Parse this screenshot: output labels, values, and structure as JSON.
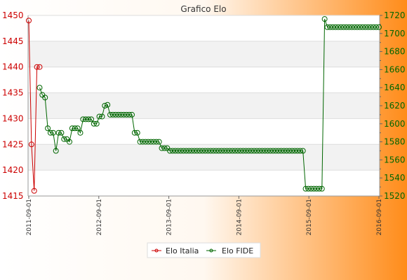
{
  "chart_data": {
    "type": "line",
    "title": "Grafico Elo",
    "legend_placement": "bottom",
    "grid": true,
    "x_tick_labels": [
      "2011-09-01",
      "2012-09-01",
      "2013-09-01",
      "2014-09-01",
      "2015-09-01",
      "2016-09-01"
    ],
    "y_left": {
      "min": 1415,
      "max": 1450,
      "ticks": [
        1415,
        1420,
        1425,
        1430,
        1435,
        1440,
        1445,
        1450
      ],
      "color": "#cc0000"
    },
    "y_right": {
      "min": 1520,
      "max": 1720,
      "ticks": [
        1520,
        1540,
        1560,
        1580,
        1600,
        1620,
        1640,
        1660,
        1680,
        1700,
        1720
      ],
      "color": "#006600"
    },
    "n_periods": 130,
    "series": [
      {
        "name": "Elo Italia",
        "axis": "left",
        "color": "#cc0000",
        "points": [
          [
            0,
            1449
          ],
          [
            1,
            1425
          ],
          [
            2,
            1416
          ],
          [
            3,
            1440
          ],
          [
            4,
            1440
          ]
        ]
      },
      {
        "name": "Elo FIDE",
        "axis": "right",
        "color": "#006600",
        "points": [
          [
            4,
            1640
          ],
          [
            5,
            1632
          ],
          [
            6,
            1629
          ],
          [
            7,
            1595
          ],
          [
            8,
            1590
          ],
          [
            9,
            1590
          ],
          [
            10,
            1570
          ],
          [
            11,
            1590
          ],
          [
            12,
            1590
          ],
          [
            13,
            1583
          ],
          [
            14,
            1583
          ],
          [
            15,
            1580
          ],
          [
            16,
            1595
          ],
          [
            17,
            1595
          ],
          [
            18,
            1595
          ],
          [
            19,
            1590
          ],
          [
            20,
            1605
          ],
          [
            21,
            1605
          ],
          [
            22,
            1605
          ],
          [
            23,
            1605
          ],
          [
            24,
            1600
          ],
          [
            25,
            1600
          ],
          [
            26,
            1608
          ],
          [
            27,
            1608
          ],
          [
            28,
            1620
          ],
          [
            29,
            1621
          ],
          [
            30,
            1610
          ],
          [
            31,
            1610
          ],
          [
            32,
            1610
          ],
          [
            33,
            1610
          ],
          [
            34,
            1610
          ],
          [
            35,
            1610
          ],
          [
            36,
            1610
          ],
          [
            37,
            1610
          ],
          [
            38,
            1610
          ],
          [
            39,
            1590
          ],
          [
            40,
            1590
          ],
          [
            41,
            1580
          ],
          [
            42,
            1580
          ],
          [
            43,
            1580
          ],
          [
            44,
            1580
          ],
          [
            45,
            1580
          ],
          [
            46,
            1580
          ],
          [
            47,
            1580
          ],
          [
            48,
            1580
          ],
          [
            49,
            1573
          ],
          [
            50,
            1573
          ],
          [
            51,
            1573
          ],
          [
            52,
            1570
          ],
          [
            53,
            1570
          ],
          [
            54,
            1570
          ],
          [
            55,
            1570
          ],
          [
            56,
            1570
          ],
          [
            57,
            1570
          ],
          [
            58,
            1570
          ],
          [
            59,
            1570
          ],
          [
            60,
            1570
          ],
          [
            61,
            1570
          ],
          [
            62,
            1570
          ],
          [
            63,
            1570
          ],
          [
            64,
            1570
          ],
          [
            65,
            1570
          ],
          [
            66,
            1570
          ],
          [
            67,
            1570
          ],
          [
            68,
            1570
          ],
          [
            69,
            1570
          ],
          [
            70,
            1570
          ],
          [
            71,
            1570
          ],
          [
            72,
            1570
          ],
          [
            73,
            1570
          ],
          [
            74,
            1570
          ],
          [
            75,
            1570
          ],
          [
            76,
            1570
          ],
          [
            77,
            1570
          ],
          [
            78,
            1570
          ],
          [
            79,
            1570
          ],
          [
            80,
            1570
          ],
          [
            81,
            1570
          ],
          [
            82,
            1570
          ],
          [
            83,
            1570
          ],
          [
            84,
            1570
          ],
          [
            85,
            1570
          ],
          [
            86,
            1570
          ],
          [
            87,
            1570
          ],
          [
            88,
            1570
          ],
          [
            89,
            1570
          ],
          [
            90,
            1570
          ],
          [
            91,
            1570
          ],
          [
            92,
            1570
          ],
          [
            93,
            1570
          ],
          [
            94,
            1570
          ],
          [
            95,
            1570
          ],
          [
            96,
            1570
          ],
          [
            97,
            1570
          ],
          [
            98,
            1570
          ],
          [
            99,
            1570
          ],
          [
            100,
            1570
          ],
          [
            101,
            1570
          ],
          [
            102,
            1528
          ],
          [
            103,
            1528
          ],
          [
            104,
            1528
          ],
          [
            105,
            1528
          ],
          [
            106,
            1528
          ],
          [
            107,
            1528
          ],
          [
            108,
            1528
          ],
          [
            109,
            1716
          ],
          [
            110,
            1707
          ],
          [
            111,
            1707
          ],
          [
            112,
            1707
          ],
          [
            113,
            1707
          ],
          [
            114,
            1707
          ],
          [
            115,
            1707
          ],
          [
            116,
            1707
          ],
          [
            117,
            1707
          ],
          [
            118,
            1707
          ],
          [
            119,
            1707
          ],
          [
            120,
            1707
          ],
          [
            121,
            1707
          ],
          [
            122,
            1707
          ],
          [
            123,
            1707
          ],
          [
            124,
            1707
          ],
          [
            125,
            1707
          ],
          [
            126,
            1707
          ],
          [
            127,
            1707
          ],
          [
            128,
            1707
          ],
          [
            129,
            1707
          ]
        ]
      }
    ]
  }
}
